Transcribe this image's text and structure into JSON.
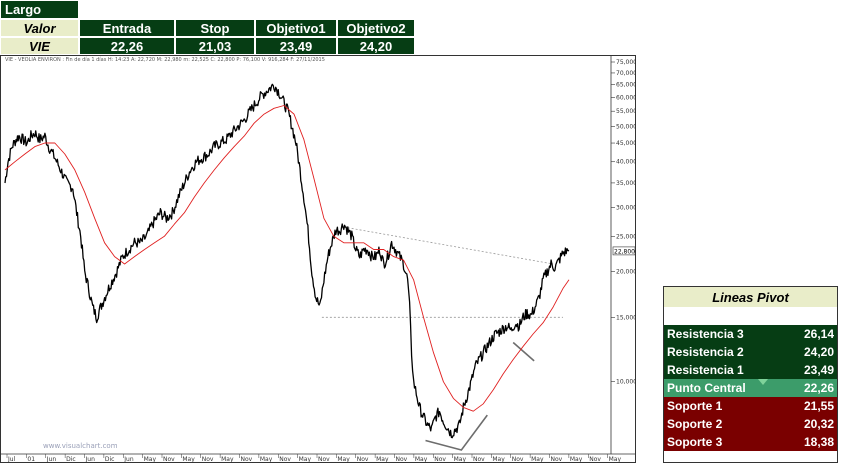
{
  "header": {
    "position": "Largo",
    "value_label": "Valor",
    "ticker": "VIE",
    "columns": [
      "Entrada",
      "Stop",
      "Objetivo1",
      "Objetivo2"
    ],
    "values": [
      "22,26",
      "21,03",
      "23,49",
      "24,20"
    ]
  },
  "chart_info": "VIE - VEOLIA ENVIRON : Fin de día 1 días H: 14:23 A: 22,720 M: 22,980 m: 22,525 C: 22,800 P: 76,100 V: 916,284 F: 27/11/2015",
  "watermark": "www.visualchart.com",
  "pivot": {
    "title": "Lineas Pivot",
    "rows": [
      {
        "label": "Resistencia 3",
        "value": "26,14",
        "type": "resistance"
      },
      {
        "label": "Resistencia 2",
        "value": "24,20",
        "type": "resistance"
      },
      {
        "label": "Resistencia 1",
        "value": "23,49",
        "type": "resistance"
      },
      {
        "label": "Punto Central",
        "value": "22,26",
        "type": "central"
      },
      {
        "label": "Soporte 1",
        "value": "21,55",
        "type": "support"
      },
      {
        "label": "Soporte 2",
        "value": "20,32",
        "type": "support"
      },
      {
        "label": "Soporte 3",
        "value": "18,38",
        "type": "support"
      }
    ]
  },
  "colors": {
    "header_bg": "#063d14",
    "label_bg": "#e9edc9",
    "resistance": "#063d14",
    "central": "#3c9c6a",
    "support": "#7a0000",
    "moving_average": "#e02020",
    "price": "#000000"
  },
  "chart_data": {
    "type": "line",
    "title": "",
    "scale": "log",
    "ylim": [
      6.5,
      75
    ],
    "y_ticks": [
      "10,000",
      "15,000",
      "20,000",
      "25,000",
      "30,000",
      "35,000",
      "40,000",
      "45,000",
      "50,000",
      "55,000",
      "60,000",
      "65,000",
      "70,000",
      "75,000"
    ],
    "last_price_label": "22,800",
    "x_ticks": [
      "Jul",
      "01",
      "Jun",
      "Dic",
      "Jun",
      "Dic",
      "Jun",
      "May",
      "Nov",
      "May",
      "Nov",
      "May",
      "Nov",
      "May",
      "Nov",
      "May",
      "Nov",
      "May",
      "Nov",
      "May",
      "Nov",
      "May",
      "Nov",
      "May",
      "Nov",
      "May",
      "Nov",
      "May",
      "Nov",
      "May",
      "Nov",
      "May"
    ],
    "series": [
      {
        "kind": "price",
        "x": [
          0,
          3,
          7,
          11,
          14,
          18,
          22,
          26,
          30,
          35,
          40,
          44,
          50,
          56,
          62,
          68,
          72,
          76,
          80,
          84,
          88,
          92,
          96,
          100,
          104,
          108,
          112,
          118,
          124,
          130,
          136,
          142,
          148,
          152,
          156,
          162,
          168,
          174,
          180,
          186,
          192,
          198,
          204,
          210,
          216,
          222,
          228,
          234,
          240,
          246,
          252,
          258,
          264,
          270,
          275,
          280,
          284,
          288,
          292,
          296,
          300,
          304,
          308,
          312,
          316,
          320,
          324,
          328,
          332,
          336,
          340,
          344,
          348,
          352,
          356,
          360,
          364,
          368,
          372,
          376,
          380,
          384,
          388,
          392,
          396,
          400,
          404,
          406,
          408,
          410,
          412,
          416,
          420,
          424,
          428,
          432,
          436,
          440,
          444,
          448,
          452,
          456,
          460,
          464,
          468,
          472,
          476,
          480,
          484,
          488,
          492,
          496,
          500,
          504,
          508,
          512,
          516,
          520,
          524,
          528,
          532,
          536,
          540,
          544,
          548,
          552,
          556,
          560,
          564,
          566
        ],
        "values": [
          35,
          40,
          44,
          46,
          47,
          46,
          45,
          47,
          48,
          46,
          47,
          44,
          41,
          38,
          35,
          34,
          29,
          25,
          20,
          18,
          16,
          15,
          16,
          17,
          18,
          19,
          20,
          22,
          23,
          24,
          24,
          25,
          27,
          28,
          29,
          28,
          29,
          32,
          35,
          38,
          40,
          41,
          42,
          44,
          45,
          46,
          48,
          50,
          52,
          55,
          58,
          61,
          63,
          65,
          62,
          58,
          55,
          50,
          45,
          38,
          32,
          26,
          20,
          17,
          16,
          19,
          22,
          24,
          26,
          26,
          27,
          26,
          25,
          23,
          22,
          23,
          23,
          22,
          22,
          23,
          21,
          22,
          24,
          23,
          22,
          21,
          19,
          16,
          12,
          10,
          9.5,
          8.5,
          8,
          7.6,
          7.4,
          8,
          8.3,
          7.8,
          7.5,
          7.2,
          7.4,
          7.6,
          8.5,
          9.2,
          10,
          11,
          11.5,
          12,
          12.5,
          13,
          13.5,
          13.7,
          14,
          14.2,
          13.8,
          14.5,
          14.2,
          15,
          15.4,
          15.2,
          16,
          17,
          19,
          20,
          21,
          20.5,
          21.5,
          22.5,
          22.8,
          22.8
        ]
      },
      {
        "kind": "moving_average",
        "x": [
          0,
          10,
          20,
          30,
          40,
          50,
          60,
          70,
          80,
          90,
          100,
          110,
          120,
          130,
          140,
          150,
          160,
          170,
          180,
          190,
          200,
          210,
          220,
          230,
          240,
          250,
          260,
          270,
          280,
          290,
          300,
          310,
          320,
          330,
          340,
          350,
          360,
          370,
          380,
          390,
          400,
          410,
          420,
          430,
          440,
          450,
          460,
          470,
          480,
          490,
          500,
          510,
          520,
          530,
          540,
          550,
          560,
          566
        ],
        "values": [
          38,
          40,
          42,
          44,
          45,
          45,
          42,
          38,
          33,
          28,
          24,
          22,
          21,
          22,
          23,
          24,
          25,
          27,
          29,
          32,
          35,
          38,
          41,
          44,
          47,
          51,
          54,
          56,
          57,
          54,
          46,
          36,
          28,
          25,
          24,
          24,
          24,
          23,
          23,
          22,
          21.5,
          19,
          15,
          12,
          10,
          9,
          8.5,
          8.3,
          8.7,
          9.5,
          10.5,
          11.5,
          12.5,
          13.5,
          14.5,
          16,
          18,
          19
        ]
      }
    ],
    "annotations": [
      {
        "type": "dotted_line",
        "x": [
          340,
          550
        ],
        "values": [
          26.5,
          21
        ]
      },
      {
        "type": "dotted_line",
        "x": [
          318,
          560
        ],
        "values": [
          15,
          15
        ]
      },
      {
        "type": "line",
        "x": [
          422,
          458,
          484
        ],
        "values": [
          6.9,
          6.5,
          8.1
        ]
      },
      {
        "type": "line",
        "x": [
          510,
          531
        ],
        "values": [
          12.8,
          11.4
        ]
      }
    ]
  }
}
